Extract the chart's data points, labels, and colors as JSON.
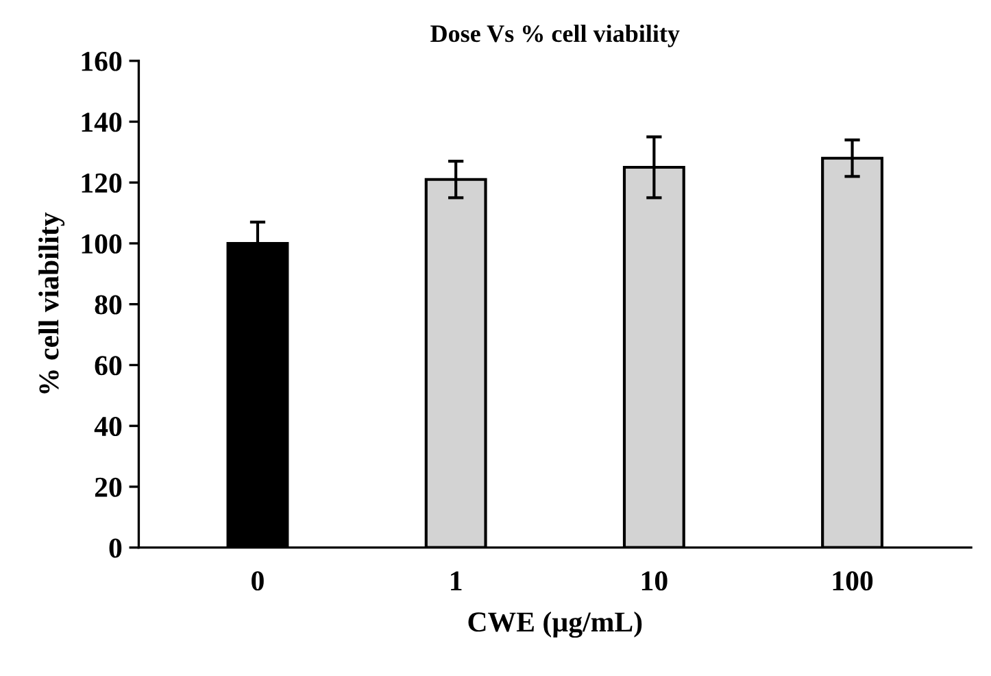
{
  "chart_data": {
    "type": "bar",
    "title": "Dose Vs % cell viability",
    "xlabel": "CWE (µg/mL)",
    "ylabel": "% cell viability",
    "categories": [
      "0",
      "1",
      "10",
      "100"
    ],
    "values": [
      100,
      121,
      125,
      128
    ],
    "colors": [
      "#000000",
      "#d3d3d3",
      "#d3d3d3",
      "#d3d3d3"
    ],
    "errors": [
      7,
      6,
      10,
      6
    ],
    "ylim": [
      0,
      160
    ],
    "yticks": [
      0,
      20,
      40,
      60,
      80,
      100,
      120,
      140,
      160
    ]
  }
}
